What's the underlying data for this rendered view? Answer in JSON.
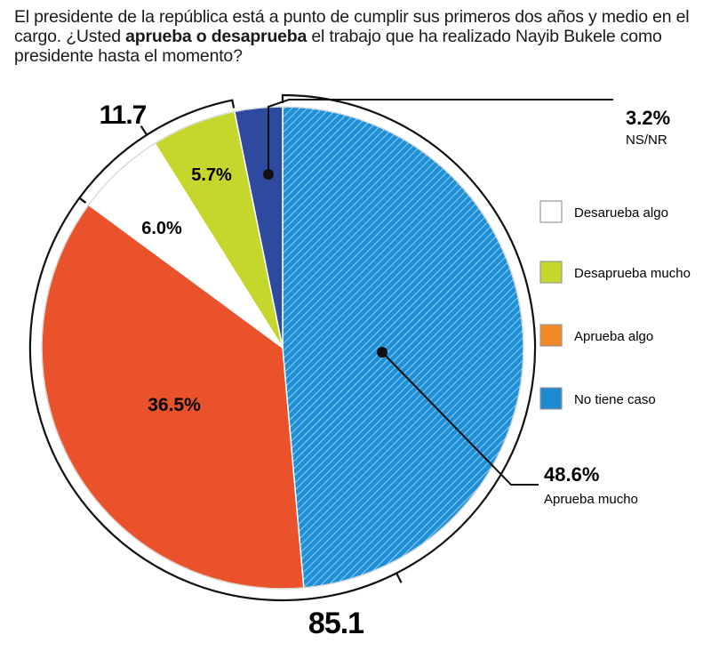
{
  "question": {
    "part1": "El presidente de la república está a punto de cumplir sus primeros dos años y medio en el cargo. ¿Usted ",
    "bold": "aprueba o desaprueba",
    "part2": " el trabajo que ha realizado Nayib Bukele como presidente hasta el momento?"
  },
  "chart_data": {
    "type": "pie",
    "slices": [
      {
        "label": "Aprueba mucho",
        "value": 48.6,
        "display": "48.6%",
        "color": "#1f8fd6",
        "hatched": true
      },
      {
        "label": "Aprueba algo",
        "value": 36.5,
        "display": "36.5%",
        "color": "#e9522a",
        "hatched": false
      },
      {
        "label": "Desarueba algo",
        "value": 6.0,
        "display": "6.0%",
        "color": "#ffffff",
        "hatched": false
      },
      {
        "label": "Desaprueba mucho",
        "value": 5.7,
        "display": "5.7%",
        "color": "#c5d62c",
        "hatched": false
      },
      {
        "label": "NS/NR",
        "value": 3.2,
        "display": "3.2%",
        "color": "#2e4a9e",
        "hatched": false
      }
    ],
    "groups": [
      {
        "label": "85.1",
        "members": [
          "Aprueba mucho",
          "Aprueba algo"
        ]
      },
      {
        "label": "11.7",
        "members": [
          "Desarueba algo",
          "Desaprueba mucho"
        ]
      }
    ],
    "legend": [
      {
        "label": "Desarueba algo",
        "color": "#ffffff"
      },
      {
        "label": "Desaprueba mucho",
        "color": "#c5d62c"
      },
      {
        "label": "Aprueba algo",
        "color": "#f08a24"
      },
      {
        "label": "No tiene caso",
        "color": "#1e88d2"
      }
    ],
    "legend_position": "right",
    "start": "top, clockwise"
  }
}
